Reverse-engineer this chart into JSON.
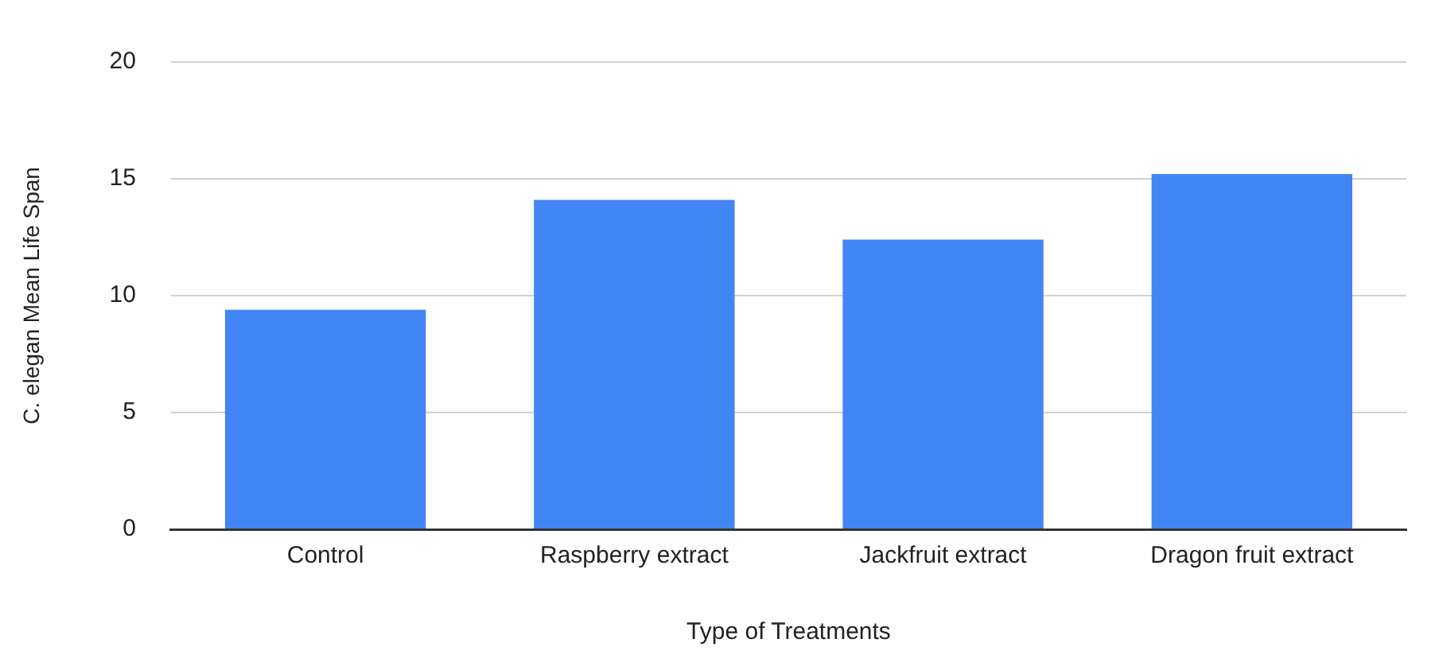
{
  "chart_data": {
    "type": "bar",
    "xlabel": "Type of Treatments",
    "ylabel": "C. elegan Mean Life Span",
    "categories": [
      "Control",
      "Raspberry extract",
      "Jackfruit extract",
      "Dragon fruit extract"
    ],
    "values": [
      9.4,
      14.1,
      12.4,
      15.2
    ],
    "color": "#4285f4",
    "ylim": [
      0,
      20
    ],
    "yticks": [
      0,
      5,
      10,
      15,
      20
    ],
    "grid": "y"
  }
}
